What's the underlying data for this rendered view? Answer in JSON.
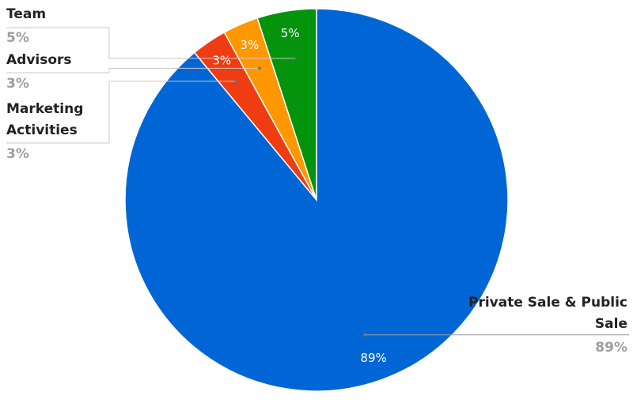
{
  "chart_data": {
    "type": "pie",
    "categories": [
      "Private Sale & Public Sale",
      "Marketing Activities",
      "Advisors",
      "Team"
    ],
    "values": [
      89,
      3,
      3,
      5
    ],
    "value_labels": [
      "89%",
      "3%",
      "3%",
      "5%"
    ],
    "colors": [
      "#0066d6",
      "#f03c12",
      "#ff9800",
      "#04930c"
    ],
    "start_angle": 0,
    "direction": "clockwise"
  }
}
